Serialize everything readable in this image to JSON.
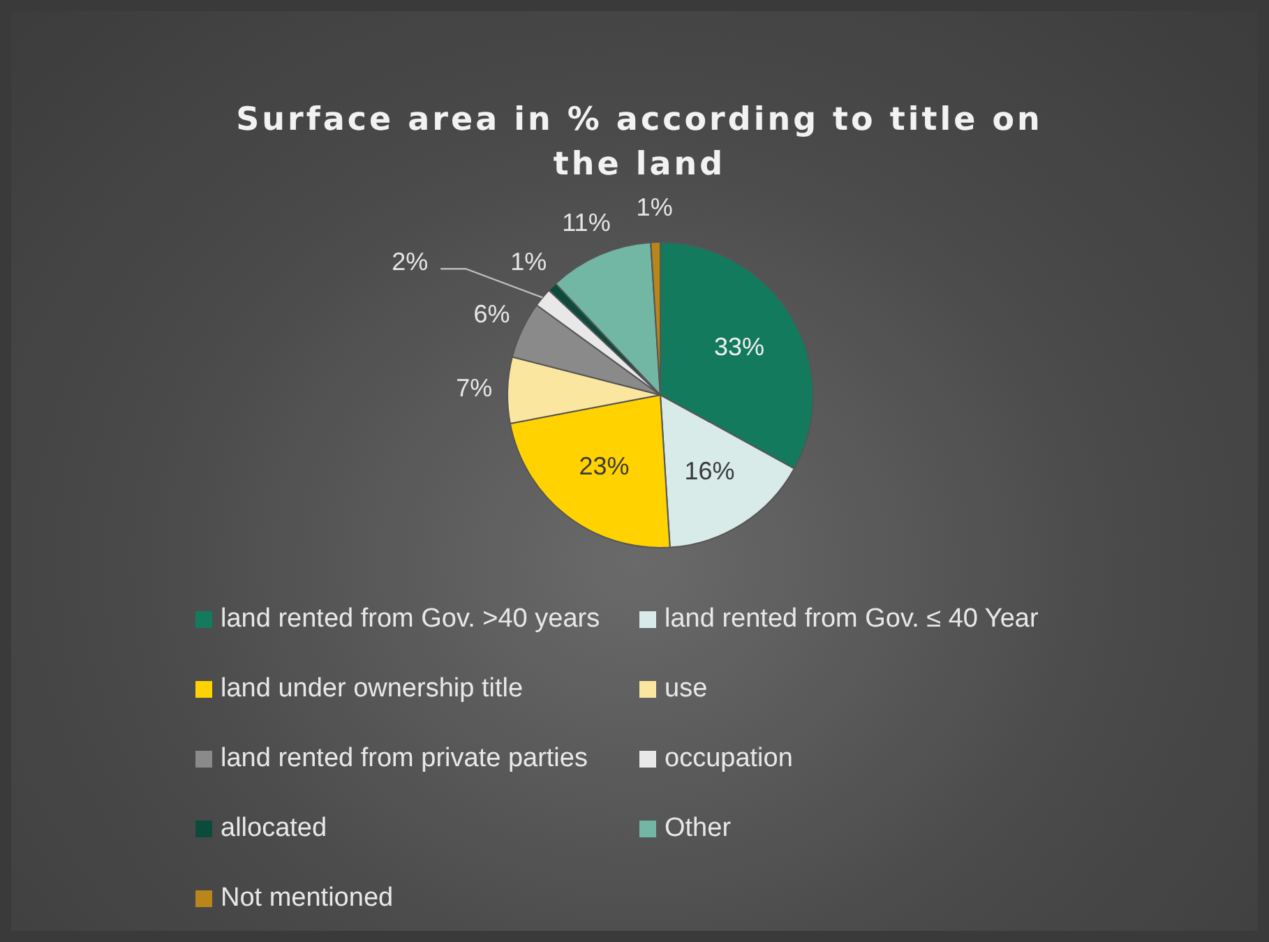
{
  "chart_data": {
    "type": "pie",
    "title": "Surface area in % according to title on the land",
    "categories": [
      "land rented from Gov. >40 years",
      "land rented from Gov. ≤ 40 Year",
      "land under ownership title",
      "use",
      "land rented from private parties",
      "occupation",
      "allocated",
      "Other",
      "Not mentioned"
    ],
    "values": [
      33,
      16,
      23,
      7,
      6,
      2,
      1,
      11,
      1
    ],
    "colors": [
      "#137a5d",
      "#d8ebe8",
      "#ffd200",
      "#fbe6a0",
      "#8a8a8a",
      "#e8e8e8",
      "#0b4b3b",
      "#72b7a3",
      "#b8861a"
    ],
    "value_labels": [
      "33%",
      "16%",
      "23%",
      "7%",
      "6%",
      "2%",
      "1%",
      "11%",
      "1%"
    ],
    "legend": "bottom"
  }
}
